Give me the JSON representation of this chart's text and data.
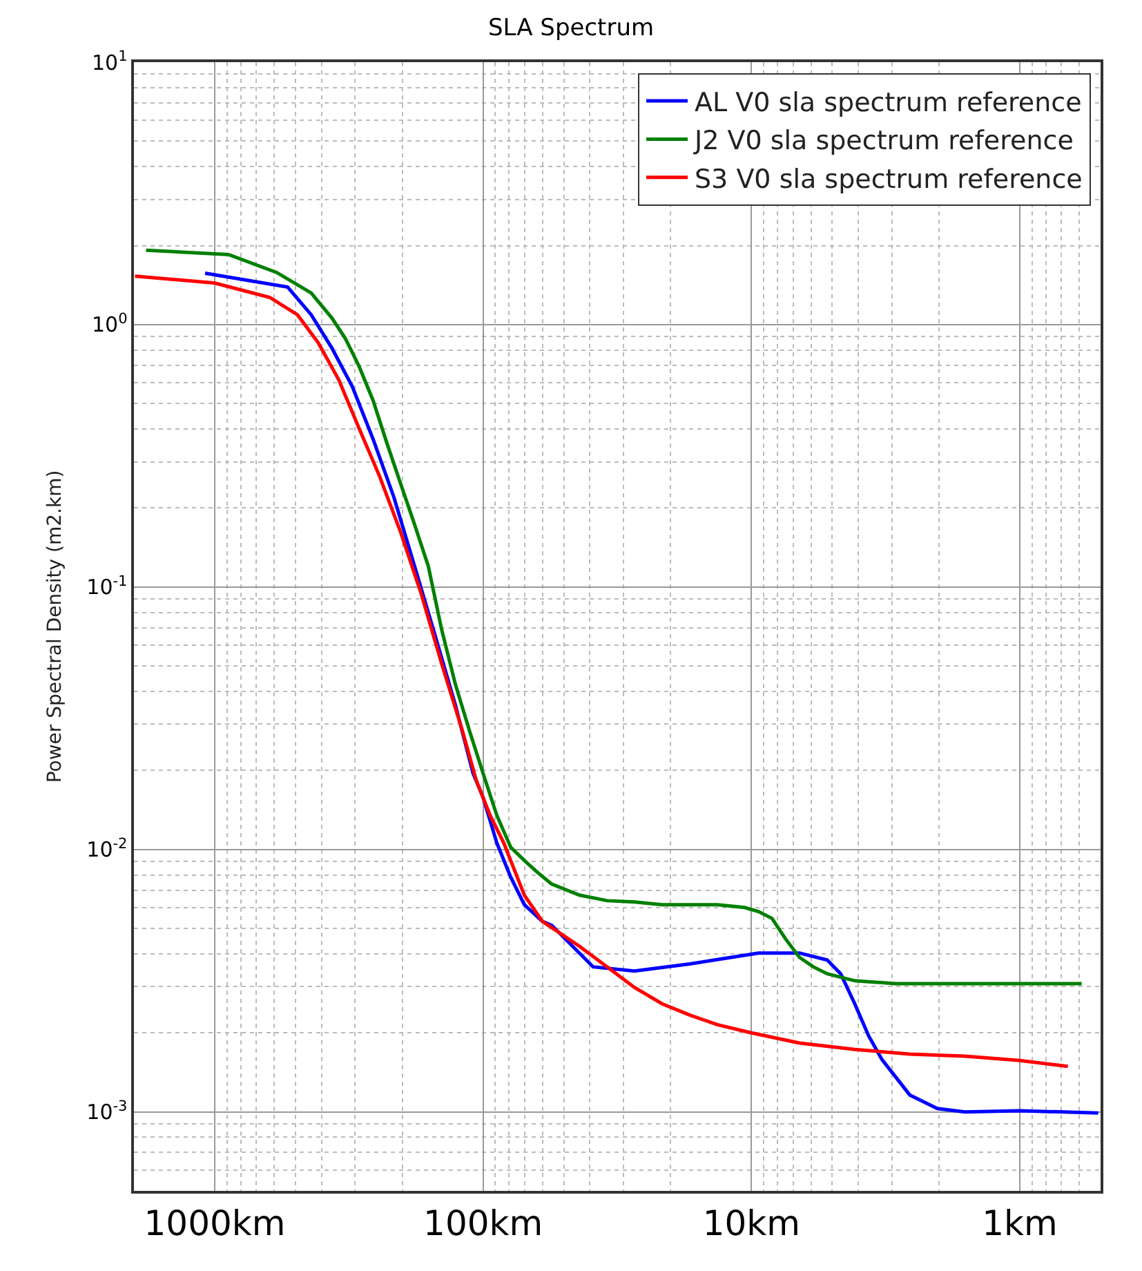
{
  "chart_data": {
    "type": "line",
    "title": "SLA Spectrum",
    "ylabel": "Power Spectral Density (m2.km)",
    "log": "xy",
    "grid": true,
    "legend": "top right",
    "line_style": "solid",
    "marker": "none",
    "xlim": [
      2000,
      0.5
    ],
    "xticks": [
      {
        "value": 1000,
        "label": "1000km"
      },
      {
        "value": 100,
        "label": "100km"
      },
      {
        "value": 10,
        "label": "10km"
      },
      {
        "value": 1,
        "label": "1km"
      }
    ],
    "ylim": [
      0.0005,
      10
    ],
    "yticks": [
      {
        "value": 0.001,
        "label": "10$^{-3}$"
      },
      {
        "value": 0.01,
        "label": "10$^{-2}$"
      },
      {
        "value": 0.1,
        "label": "10$^{-1}$"
      },
      {
        "value": 1,
        "label": "10$^{0}$"
      },
      {
        "value": 10,
        "label": "10$^{1}$"
      }
    ],
    "series": [
      {
        "name": "AL V0 sla spectrum reference",
        "color": "#0000ff",
        "x": [
          1086,
          535,
          437,
          366,
          307,
          257,
          215,
          180,
          151,
          127,
          109,
          100,
          88.9,
          78.9,
          70.2,
          60.1,
          55.5,
          38.9,
          27.3,
          17.0,
          11.9,
          9.42,
          6.62,
          5.22,
          4.65,
          4.12,
          3.66,
          3.26,
          2.57,
          2.03,
          1.6,
          1.0,
          0.51
        ],
        "values": [
          1.57,
          1.39,
          1.09,
          0.814,
          0.58,
          0.366,
          0.22,
          0.12,
          0.0655,
          0.0357,
          0.0195,
          0.0158,
          0.0106,
          0.00785,
          0.00616,
          0.00532,
          0.00514,
          0.00357,
          0.00344,
          0.00366,
          0.00388,
          0.00403,
          0.00403,
          0.00379,
          0.00336,
          0.00258,
          0.00195,
          0.00158,
          0.00116,
          0.00103,
          0.001,
          0.00101,
          0.00099
        ]
      },
      {
        "name": "J2 V0 sla spectrum reference",
        "color": "#008000",
        "x": [
          1803,
          889,
          588,
          437,
          366,
          326,
          290,
          257,
          229,
          203,
          180,
          160,
          143,
          127,
          112,
          100,
          88.9,
          78.9,
          70.2,
          62.4,
          55.5,
          43.8,
          34.5,
          27.3,
          21.5,
          17.0,
          13.4,
          10.6,
          9.42,
          8.38,
          7.45,
          6.62,
          5.88,
          5.22,
          4.12,
          2.9,
          1.6,
          0.889,
          0.588
        ],
        "values": [
          1.92,
          1.85,
          1.58,
          1.32,
          1.06,
          0.885,
          0.695,
          0.514,
          0.357,
          0.248,
          0.173,
          0.12,
          0.0695,
          0.0428,
          0.028,
          0.0195,
          0.0135,
          0.0102,
          0.00908,
          0.00814,
          0.00738,
          0.0067,
          0.00638,
          0.00631,
          0.00616,
          0.00616,
          0.00616,
          0.00601,
          0.0058,
          0.00546,
          0.00455,
          0.00388,
          0.00357,
          0.00336,
          0.00316,
          0.00308,
          0.00308,
          0.00308,
          0.00308
        ]
      },
      {
        "name": "S3 V0 sla spectrum reference",
        "color": "#ff0000",
        "x": [
          1982,
          1000,
          624,
          492,
          412,
          345,
          290,
          243,
          203,
          170,
          143,
          119,
          106,
          94.2,
          83.8,
          70.2,
          60.1,
          43.8,
          34.5,
          27.3,
          21.5,
          17.0,
          13.4,
          10,
          6.62,
          4.12,
          2.57,
          1.6,
          1.0,
          0.662
        ],
        "values": [
          1.53,
          1.44,
          1.27,
          1.09,
          0.855,
          0.616,
          0.403,
          0.264,
          0.162,
          0.0942,
          0.0514,
          0.028,
          0.0183,
          0.0135,
          0.0106,
          0.0067,
          0.00532,
          0.00428,
          0.00357,
          0.00298,
          0.00258,
          0.00234,
          0.00215,
          0.002,
          0.00183,
          0.00173,
          0.00166,
          0.00163,
          0.00157,
          0.00149
        ]
      }
    ]
  }
}
